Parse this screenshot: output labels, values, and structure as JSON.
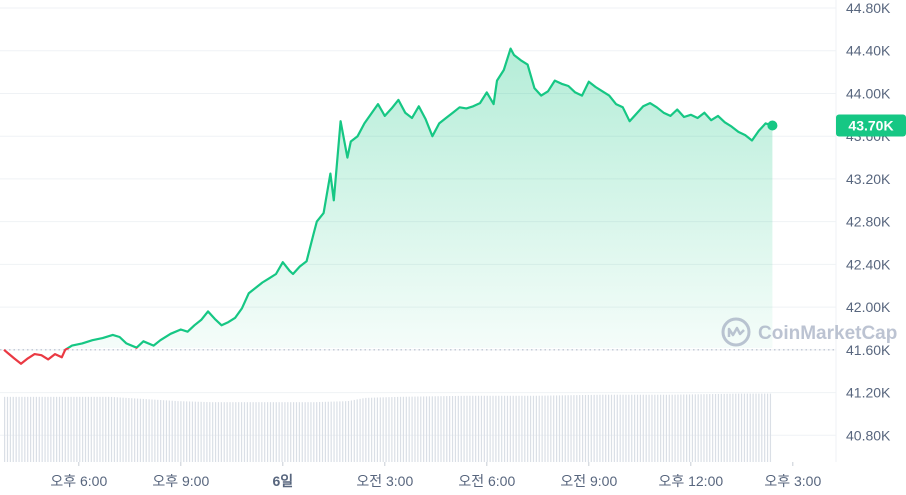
{
  "chart_data": {
    "type": "area",
    "watermark": "CoinMarketCap",
    "current_price_label": "43.70K",
    "baseline_value": 41600,
    "ylim": [
      40550,
      44800
    ],
    "y_ticks": [
      {
        "value": 44800,
        "label": "44.80K"
      },
      {
        "value": 44400,
        "label": "44.40K"
      },
      {
        "value": 44000,
        "label": "44.00K"
      },
      {
        "value": 43600,
        "label": "43.60K"
      },
      {
        "value": 43200,
        "label": "43.20K"
      },
      {
        "value": 42800,
        "label": "42.80K"
      },
      {
        "value": 42400,
        "label": "42.40K"
      },
      {
        "value": 42000,
        "label": "42.00K"
      },
      {
        "value": 41600,
        "label": "41.60K"
      },
      {
        "value": 41200,
        "label": "41.20K"
      },
      {
        "value": 40800,
        "label": "40.80K"
      }
    ],
    "x_ticks": [
      {
        "t": 2.6,
        "label": "오후 6:00",
        "bold": false
      },
      {
        "t": 5.6,
        "label": "오후 9:00",
        "bold": false
      },
      {
        "t": 8.6,
        "label": "6일",
        "bold": true
      },
      {
        "t": 11.6,
        "label": "오전 3:00",
        "bold": false
      },
      {
        "t": 14.6,
        "label": "오전 6:00",
        "bold": false
      },
      {
        "t": 17.6,
        "label": "오전 9:00",
        "bold": false
      },
      {
        "t": 20.6,
        "label": "오후 12:00",
        "bold": false
      },
      {
        "t": 23.6,
        "label": "오후 3:00",
        "bold": false
      }
    ],
    "x_range": [
      0.4,
      24.4
    ],
    "price_series": [
      [
        0.4,
        41600
      ],
      [
        0.55,
        41560
      ],
      [
        0.7,
        41520
      ],
      [
        0.9,
        41470
      ],
      [
        1.1,
        41520
      ],
      [
        1.3,
        41560
      ],
      [
        1.5,
        41550
      ],
      [
        1.7,
        41510
      ],
      [
        1.9,
        41560
      ],
      [
        2.1,
        41530
      ],
      [
        2.2,
        41600
      ],
      [
        2.4,
        41640
      ],
      [
        2.7,
        41660
      ],
      [
        3.0,
        41690
      ],
      [
        3.3,
        41710
      ],
      [
        3.6,
        41740
      ],
      [
        3.8,
        41720
      ],
      [
        4.0,
        41660
      ],
      [
        4.3,
        41620
      ],
      [
        4.5,
        41680
      ],
      [
        4.8,
        41640
      ],
      [
        5.0,
        41690
      ],
      [
        5.3,
        41750
      ],
      [
        5.6,
        41790
      ],
      [
        5.8,
        41770
      ],
      [
        6.0,
        41830
      ],
      [
        6.2,
        41880
      ],
      [
        6.4,
        41960
      ],
      [
        6.6,
        41890
      ],
      [
        6.8,
        41830
      ],
      [
        7.0,
        41860
      ],
      [
        7.2,
        41900
      ],
      [
        7.4,
        41990
      ],
      [
        7.6,
        42130
      ],
      [
        7.8,
        42180
      ],
      [
        8.0,
        42230
      ],
      [
        8.2,
        42270
      ],
      [
        8.4,
        42310
      ],
      [
        8.6,
        42420
      ],
      [
        8.8,
        42340
      ],
      [
        8.9,
        42310
      ],
      [
        9.1,
        42380
      ],
      [
        9.3,
        42430
      ],
      [
        9.5,
        42680
      ],
      [
        9.6,
        42800
      ],
      [
        9.8,
        42880
      ],
      [
        10.0,
        43250
      ],
      [
        10.1,
        43000
      ],
      [
        10.3,
        43740
      ],
      [
        10.5,
        43400
      ],
      [
        10.6,
        43550
      ],
      [
        10.8,
        43600
      ],
      [
        11.0,
        43720
      ],
      [
        11.2,
        43810
      ],
      [
        11.4,
        43900
      ],
      [
        11.6,
        43790
      ],
      [
        11.8,
        43860
      ],
      [
        12.0,
        43940
      ],
      [
        12.2,
        43820
      ],
      [
        12.4,
        43770
      ],
      [
        12.6,
        43880
      ],
      [
        12.8,
        43760
      ],
      [
        13.0,
        43600
      ],
      [
        13.2,
        43720
      ],
      [
        13.4,
        43770
      ],
      [
        13.6,
        43820
      ],
      [
        13.8,
        43870
      ],
      [
        14.0,
        43860
      ],
      [
        14.2,
        43880
      ],
      [
        14.4,
        43910
      ],
      [
        14.6,
        44010
      ],
      [
        14.8,
        43900
      ],
      [
        14.9,
        44120
      ],
      [
        15.1,
        44220
      ],
      [
        15.3,
        44420
      ],
      [
        15.4,
        44360
      ],
      [
        15.6,
        44310
      ],
      [
        15.8,
        44270
      ],
      [
        16.0,
        44050
      ],
      [
        16.2,
        43980
      ],
      [
        16.4,
        44020
      ],
      [
        16.6,
        44120
      ],
      [
        16.8,
        44090
      ],
      [
        17.0,
        44070
      ],
      [
        17.2,
        44010
      ],
      [
        17.4,
        43980
      ],
      [
        17.6,
        44110
      ],
      [
        17.8,
        44060
      ],
      [
        18.0,
        44020
      ],
      [
        18.2,
        43980
      ],
      [
        18.4,
        43900
      ],
      [
        18.6,
        43870
      ],
      [
        18.8,
        43740
      ],
      [
        19.0,
        43810
      ],
      [
        19.2,
        43880
      ],
      [
        19.4,
        43910
      ],
      [
        19.6,
        43870
      ],
      [
        19.8,
        43820
      ],
      [
        20.0,
        43790
      ],
      [
        20.2,
        43850
      ],
      [
        20.4,
        43780
      ],
      [
        20.6,
        43800
      ],
      [
        20.8,
        43770
      ],
      [
        21.0,
        43820
      ],
      [
        21.2,
        43750
      ],
      [
        21.4,
        43790
      ],
      [
        21.6,
        43730
      ],
      [
        21.8,
        43690
      ],
      [
        22.0,
        43640
      ],
      [
        22.2,
        43610
      ],
      [
        22.4,
        43560
      ],
      [
        22.6,
        43650
      ],
      [
        22.8,
        43720
      ],
      [
        23.0,
        43700
      ]
    ],
    "volume_series": [
      [
        0.4,
        41160
      ],
      [
        2.0,
        41160
      ],
      [
        3.5,
        41160
      ],
      [
        4.5,
        41140
      ],
      [
        5.5,
        41120
      ],
      [
        6.5,
        41110
      ],
      [
        7.5,
        41110
      ],
      [
        8.5,
        41110
      ],
      [
        9.5,
        41110
      ],
      [
        10.5,
        41120
      ],
      [
        11.0,
        41150
      ],
      [
        12.0,
        41160
      ],
      [
        14.0,
        41170
      ],
      [
        16.0,
        41170
      ],
      [
        18.0,
        41180
      ],
      [
        20.0,
        41180
      ],
      [
        22.0,
        41190
      ],
      [
        23.0,
        41190
      ]
    ],
    "colors": {
      "up_line": "#16c784",
      "down_line": "#ea3943",
      "area_fill_top": "#16c784",
      "volume_bar": "#dadfe6",
      "baseline_dots": "#b5bccb",
      "grid": "#eff2f5",
      "badge_bg": "#16c784"
    }
  }
}
